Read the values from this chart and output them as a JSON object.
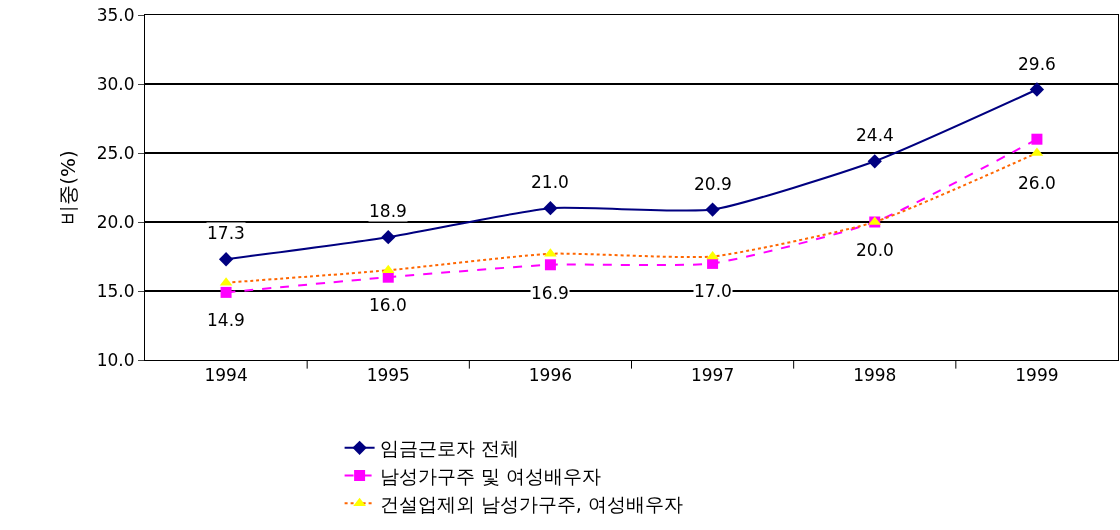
{
  "chart_data": {
    "type": "line",
    "ylabel": "비중(%)",
    "categories": [
      "1994",
      "1995",
      "1996",
      "1997",
      "1998",
      "1999"
    ],
    "ylim": [
      10,
      35
    ],
    "yticks": [
      {
        "value": 10,
        "label": "10.0"
      },
      {
        "value": 15,
        "label": "15.0"
      },
      {
        "value": 20,
        "label": "20.0"
      },
      {
        "value": 25,
        "label": "25.0"
      },
      {
        "value": 30,
        "label": "30.0"
      },
      {
        "value": 35,
        "label": "35.0"
      }
    ],
    "grid": "y",
    "legend": "bottom",
    "series": [
      {
        "name": "임금근로자 전체",
        "color": "#000080",
        "marker": "diamond",
        "line_style": "solid",
        "values": [
          17.3,
          18.9,
          21.0,
          20.9,
          24.4,
          29.6
        ],
        "value_labels": [
          "17.3",
          "18.9",
          "21.0",
          "20.9",
          "24.4",
          "29.6"
        ]
      },
      {
        "name": "남성가구주 및 여성배우자",
        "color": "#ff00ff",
        "marker": "square",
        "line_style": "dashed",
        "values": [
          14.9,
          16.0,
          16.9,
          17.0,
          20.0,
          26.0
        ],
        "value_labels": [
          "14.9",
          "16.0",
          "16.9",
          "17.0",
          "20.0",
          "26.0"
        ]
      },
      {
        "name": "건설업제외 남성가구주, 여성배우자",
        "color": "#ff6600",
        "colors": [
          "#ffff00",
          "#ffff00",
          "#ffff00",
          "#ffff00",
          "#ffff00",
          "#ffff00"
        ],
        "marker": "triangle",
        "line_style": "dotted",
        "values": [
          15.6,
          16.5,
          17.7,
          17.5,
          20.0,
          25.0
        ]
      }
    ]
  }
}
